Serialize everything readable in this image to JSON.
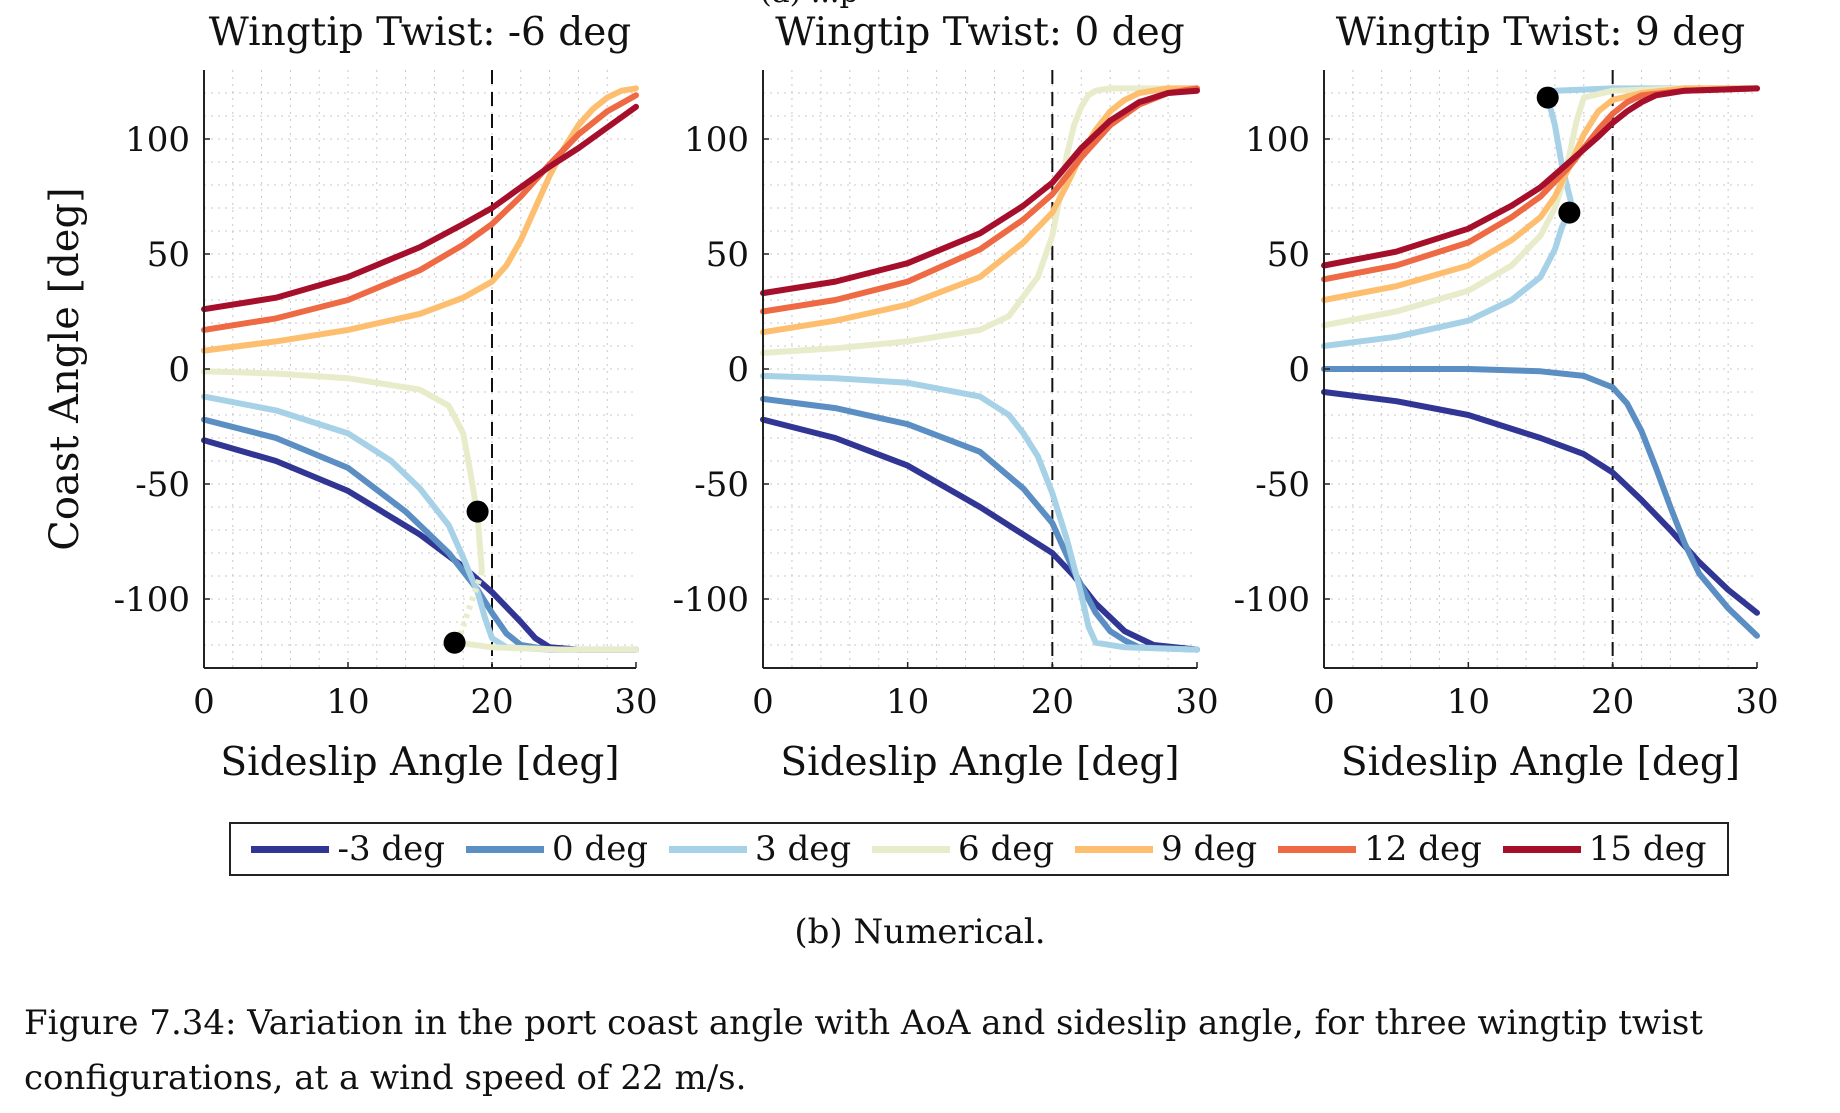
{
  "chart_data": [
    {
      "type": "line",
      "title": "Wingtip Twist: -6 deg",
      "xlabel": "Sideslip Angle [deg]",
      "ylabel": "Coast Angle [deg]",
      "xlim": [
        0,
        30
      ],
      "ylim": [
        -130,
        130
      ],
      "xticks": [
        "0",
        "10",
        "20",
        "30"
      ],
      "yticks": [
        "-100",
        "-50",
        "0",
        "50",
        "100"
      ],
      "vline_x": 20,
      "grid": true,
      "series": [
        {
          "name": "-3 deg",
          "x": [
            0,
            5,
            10,
            15,
            18,
            20,
            22,
            23,
            24,
            26,
            30
          ],
          "y": [
            -31,
            -40,
            -53,
            -72,
            -86,
            -97,
            -110,
            -117,
            -121,
            -122,
            -122
          ]
        },
        {
          "name": "0 deg",
          "x": [
            0,
            5,
            10,
            14,
            17,
            18,
            19,
            20,
            21,
            22,
            24,
            30
          ],
          "y": [
            -22,
            -30,
            -43,
            -62,
            -80,
            -88,
            -96,
            -106,
            -115,
            -120,
            -122,
            -122
          ]
        },
        {
          "name": "3 deg",
          "x": [
            0,
            5,
            10,
            13,
            15,
            17,
            18,
            19,
            19.5,
            20,
            21,
            24,
            30
          ],
          "y": [
            -12,
            -18,
            -28,
            -40,
            -52,
            -68,
            -82,
            -97,
            -108,
            -117,
            -121,
            -122,
            -122
          ]
        },
        {
          "name": "6 deg",
          "x": [
            0,
            5,
            10,
            15,
            17,
            18,
            18.5,
            19,
            19.3,
            17.6,
            20,
            25,
            30
          ],
          "y": [
            -1,
            -2,
            -4,
            -9,
            -16,
            -28,
            -45,
            -64,
            -88,
            -119,
            -121,
            -122,
            -122
          ],
          "dashed_from_index": 8
        },
        {
          "name": "9 deg",
          "x": [
            0,
            5,
            10,
            15,
            18,
            20,
            21,
            22,
            23,
            24,
            25,
            26,
            27,
            28,
            29,
            30
          ],
          "y": [
            8,
            12,
            17,
            24,
            31,
            38,
            45,
            56,
            70,
            84,
            96,
            106,
            113,
            118,
            121,
            122
          ]
        },
        {
          "name": "12 deg",
          "x": [
            0,
            5,
            10,
            15,
            18,
            20,
            22,
            24,
            26,
            28,
            30
          ],
          "y": [
            17,
            22,
            30,
            43,
            54,
            63,
            75,
            89,
            102,
            112,
            119
          ]
        },
        {
          "name": "15 deg",
          "x": [
            0,
            5,
            10,
            15,
            18,
            20,
            22,
            24,
            26,
            28,
            30
          ],
          "y": [
            26,
            31,
            40,
            53,
            63,
            70,
            79,
            88,
            96,
            105,
            114
          ]
        }
      ],
      "markers": [
        {
          "x": 19.0,
          "y": -62
        },
        {
          "x": 17.4,
          "y": -119
        }
      ]
    },
    {
      "type": "line",
      "title": "Wingtip Twist: 0 deg",
      "xlabel": "Sideslip Angle [deg]",
      "ylabel": "",
      "xlim": [
        0,
        30
      ],
      "ylim": [
        -130,
        130
      ],
      "xticks": [
        "0",
        "10",
        "20",
        "30"
      ],
      "yticks": [
        "-100",
        "-50",
        "0",
        "50",
        "100"
      ],
      "vline_x": 20,
      "grid": true,
      "series": [
        {
          "name": "-3 deg",
          "x": [
            0,
            5,
            10,
            15,
            18,
            20,
            21.5,
            23,
            25,
            27,
            30
          ],
          "y": [
            -22,
            -30,
            -42,
            -60,
            -72,
            -80,
            -90,
            -102,
            -114,
            -120,
            -122
          ]
        },
        {
          "name": "0 deg",
          "x": [
            0,
            5,
            10,
            15,
            18,
            20,
            21.5,
            23,
            24,
            25,
            26,
            30
          ],
          "y": [
            -13,
            -17,
            -24,
            -36,
            -52,
            -67,
            -88,
            -106,
            -114,
            -118,
            -121,
            -122
          ]
        },
        {
          "name": "3 deg",
          "x": [
            0,
            5,
            10,
            15,
            17,
            18,
            19,
            20,
            21,
            21.5,
            22,
            22.5,
            23,
            25,
            30
          ],
          "y": [
            -3,
            -4,
            -6,
            -12,
            -20,
            -28,
            -38,
            -54,
            -74,
            -86,
            -98,
            -112,
            -119,
            -121,
            -122
          ]
        },
        {
          "name": "6 deg",
          "x": [
            0,
            5,
            10,
            15,
            17,
            19,
            20,
            20.5,
            21,
            21.5,
            22,
            22.5,
            23,
            24,
            30
          ],
          "y": [
            7,
            9,
            12,
            17,
            23,
            40,
            58,
            74,
            93,
            106,
            114,
            119,
            121,
            122,
            122
          ]
        },
        {
          "name": "9 deg",
          "x": [
            0,
            5,
            10,
            15,
            18,
            20,
            21,
            22,
            23,
            24,
            25,
            26,
            28,
            30
          ],
          "y": [
            16,
            21,
            28,
            40,
            55,
            68,
            80,
            93,
            104,
            112,
            117,
            120,
            122,
            122
          ]
        },
        {
          "name": "12 deg",
          "x": [
            0,
            5,
            10,
            15,
            18,
            20,
            22,
            24,
            26,
            28,
            30
          ],
          "y": [
            25,
            30,
            38,
            52,
            65,
            76,
            92,
            106,
            115,
            120,
            122
          ]
        },
        {
          "name": "15 deg",
          "x": [
            0,
            5,
            10,
            15,
            18,
            20,
            22,
            24,
            26,
            28,
            30
          ],
          "y": [
            33,
            38,
            46,
            59,
            71,
            81,
            96,
            108,
            116,
            120,
            121
          ]
        }
      ],
      "markers": []
    },
    {
      "type": "line",
      "title": "Wingtip Twist: 9 deg",
      "xlabel": "Sideslip Angle [deg]",
      "ylabel": "",
      "xlim": [
        0,
        30
      ],
      "ylim": [
        -130,
        130
      ],
      "xticks": [
        "0",
        "10",
        "20",
        "30"
      ],
      "yticks": [
        "-100",
        "-50",
        "0",
        "50",
        "100"
      ],
      "vline_x": 20,
      "grid": true,
      "series": [
        {
          "name": "-3 deg",
          "x": [
            0,
            5,
            10,
            15,
            18,
            20,
            22,
            24,
            26,
            28,
            30
          ],
          "y": [
            -10,
            -14,
            -20,
            -30,
            -37,
            -45,
            -57,
            -70,
            -84,
            -96,
            -106
          ]
        },
        {
          "name": "0 deg",
          "x": [
            0,
            5,
            10,
            15,
            18,
            20,
            21,
            22,
            23,
            24,
            25,
            26,
            28,
            30
          ],
          "y": [
            0,
            0,
            0,
            -1,
            -3,
            -8,
            -15,
            -27,
            -43,
            -60,
            -76,
            -89,
            -104,
            -116
          ]
        },
        {
          "name": "3 deg",
          "x": [
            0,
            5,
            10,
            13,
            15,
            16,
            16.5,
            17,
            17.1,
            16.5,
            16,
            15.5,
            16,
            20,
            25,
            30
          ],
          "y": [
            10,
            14,
            21,
            30,
            40,
            52,
            62,
            68,
            73,
            88,
            106,
            118,
            121,
            122,
            122,
            122
          ],
          "dashed_from_index": 7
        },
        {
          "name": "6 deg",
          "x": [
            0,
            5,
            10,
            13,
            15,
            16,
            16.5,
            17,
            17.5,
            18,
            20,
            25,
            30
          ],
          "y": [
            19,
            25,
            34,
            45,
            58,
            70,
            80,
            93,
            108,
            118,
            121,
            122,
            122
          ]
        },
        {
          "name": "9 deg",
          "x": [
            0,
            5,
            10,
            13,
            15,
            16,
            17,
            18,
            19,
            20,
            22,
            25,
            30
          ],
          "y": [
            30,
            36,
            45,
            56,
            66,
            75,
            88,
            102,
            112,
            117,
            120,
            122,
            122
          ]
        },
        {
          "name": "12 deg",
          "x": [
            0,
            5,
            10,
            13,
            15,
            17,
            18,
            19,
            20,
            21,
            22,
            25,
            30
          ],
          "y": [
            39,
            45,
            55,
            66,
            75,
            88,
            96,
            104,
            111,
            116,
            119,
            121,
            122
          ]
        },
        {
          "name": "15 deg",
          "x": [
            0,
            5,
            10,
            13,
            15,
            17,
            19,
            20,
            21,
            22,
            23,
            25,
            30
          ],
          "y": [
            45,
            51,
            61,
            71,
            79,
            90,
            101,
            107,
            112,
            116,
            119,
            121,
            122
          ]
        }
      ],
      "markers": [
        {
          "x": 15.5,
          "y": 118
        },
        {
          "x": 17.0,
          "y": 68
        }
      ]
    }
  ],
  "series_colors": {
    "-3 deg": "#313695",
    "0 deg": "#5b8ec3",
    "3 deg": "#a6d1e6",
    "6 deg": "#e9eccb",
    "9 deg": "#fdbf6f",
    "12 deg": "#ee6a44",
    "15 deg": "#a50f2b"
  },
  "legend": {
    "items": [
      {
        "label": "-3 deg",
        "color": "#313695"
      },
      {
        "label": "0 deg",
        "color": "#5b8ec3"
      },
      {
        "label": "3 deg",
        "color": "#a6d1e6"
      },
      {
        "label": "6 deg",
        "color": "#e9eccb"
      },
      {
        "label": "9 deg",
        "color": "#fdbf6f"
      },
      {
        "label": "12 deg",
        "color": "#ee6a44"
      },
      {
        "label": "15 deg",
        "color": "#a50f2b"
      }
    ]
  },
  "top_fragment": "(a) ...p",
  "subcaption": "(b) Numerical.",
  "caption_line1": "Figure 7.34: Variation in the port coast angle with AoA and sideslip angle, for three wingtip twist",
  "caption_line2": "configurations, at a wind speed of 22 m/s."
}
